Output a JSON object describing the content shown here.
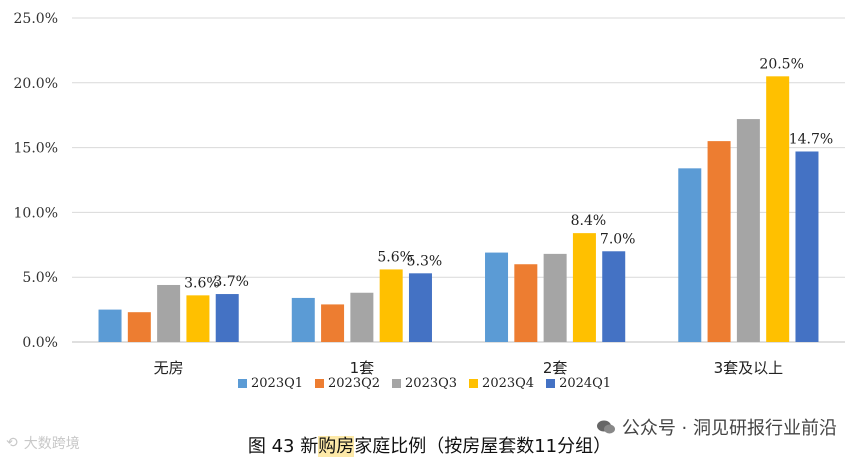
{
  "chart_data": {
    "type": "bar",
    "categories": [
      "无房",
      "1套",
      "2套",
      "3套及以上"
    ],
    "series": [
      {
        "name": "2023Q1",
        "color": "#5b9bd5",
        "values": [
          2.5,
          3.4,
          6.9,
          13.4
        ]
      },
      {
        "name": "2023Q2",
        "color": "#ed7d31",
        "values": [
          2.3,
          2.9,
          6.0,
          15.5
        ]
      },
      {
        "name": "2023Q3",
        "color": "#a5a5a5",
        "values": [
          4.4,
          3.8,
          6.8,
          17.2
        ]
      },
      {
        "name": "2023Q4",
        "color": "#ffc000",
        "values": [
          3.6,
          5.6,
          8.4,
          20.5
        ]
      },
      {
        "name": "2024Q1",
        "color": "#4472c4",
        "values": [
          3.7,
          5.3,
          7.0,
          14.7
        ]
      }
    ],
    "data_labels": {
      "2023Q4": [
        "3.6%",
        "5.6%",
        "8.4%",
        "20.5%"
      ],
      "2024Q1": [
        "3.7%",
        "5.3%",
        "7.0%",
        "14.7%"
      ]
    },
    "yticks": [
      "0.0%",
      "5.0%",
      "10.0%",
      "15.0%",
      "20.0%",
      "25.0%"
    ],
    "ylim": [
      0,
      25
    ],
    "grid": true,
    "legend_position": "bottom"
  },
  "caption": {
    "prefix": "图  43 新",
    "highlight": "购房",
    "suffix": "家庭比例（按房屋套数11分组）"
  },
  "watermarks": {
    "left": "大数跨境",
    "right": "公众号 · 洞见研报行业前沿"
  }
}
